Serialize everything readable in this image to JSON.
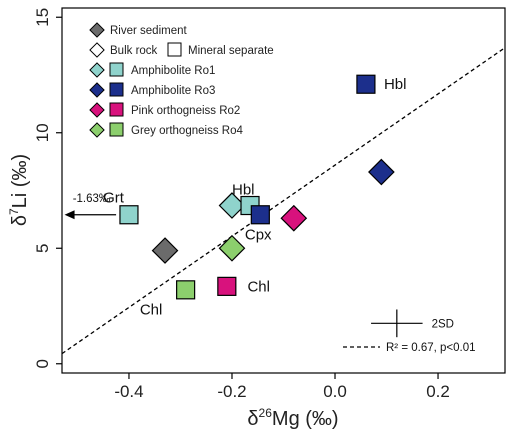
{
  "chart_data": {
    "type": "scatter",
    "xlabel_main": "δ",
    "xlabel_sup": "26",
    "xlabel_rest": "Mg (‰)",
    "ylabel_main": "δ",
    "ylabel_sup": "7",
    "ylabel_rest": "Li (‰)",
    "xlim": [
      -0.53,
      0.33
    ],
    "ylim": [
      -0.4,
      15.4
    ],
    "xticks": [
      "-0.4",
      "-0.2",
      "0.0",
      "0.2"
    ],
    "xtick_values": [
      -0.4,
      -0.2,
      0.0,
      0.2
    ],
    "yticks": [
      "0",
      "5",
      "10",
      "15"
    ],
    "ytick_values": [
      0,
      5,
      10,
      15
    ],
    "colors": {
      "river": "#6b6b6b",
      "ro1": "#8fd3cc",
      "ro3": "#1c2f8c",
      "ro2": "#d8127d",
      "ro4": "#8ccf6d"
    },
    "legend": {
      "river": "River sediment",
      "bulk": "Bulk rock",
      "mineral": "Mineral separate",
      "ro1": "Amphibolite Ro1",
      "ro3": "Amphibolite Ro3",
      "ro2": "Pink orthogneiss Ro2",
      "ro4": "Grey orthogneiss Ro4"
    },
    "points": [
      {
        "group": "river",
        "shape": "diamond",
        "x": -0.33,
        "y": 4.9
      },
      {
        "group": "ro1",
        "shape": "diamond",
        "x": -0.2,
        "y": 6.85
      },
      {
        "group": "ro1",
        "shape": "square",
        "x": -0.165,
        "y": 6.85
      },
      {
        "group": "ro1",
        "shape": "square",
        "x": -0.4,
        "y": 6.45
      },
      {
        "group": "ro3",
        "shape": "square",
        "x": 0.06,
        "y": 12.1
      },
      {
        "group": "ro3",
        "shape": "diamond",
        "x": 0.09,
        "y": 8.3
      },
      {
        "group": "ro3",
        "shape": "square",
        "x": -0.145,
        "y": 6.45
      },
      {
        "group": "ro2",
        "shape": "diamond",
        "x": -0.08,
        "y": 6.3
      },
      {
        "group": "ro2",
        "shape": "square",
        "x": -0.21,
        "y": 3.35
      },
      {
        "group": "ro4",
        "shape": "diamond",
        "x": -0.2,
        "y": 5.0
      },
      {
        "group": "ro4",
        "shape": "square",
        "x": -0.29,
        "y": 3.2
      }
    ],
    "annotations": [
      {
        "text": "Hbl",
        "x": 0.095,
        "y": 12.1
      },
      {
        "text": "Hbl",
        "x": -0.2,
        "y": 7.55
      },
      {
        "text": "Cpx",
        "x": -0.175,
        "y": 5.6
      },
      {
        "text": "Chl",
        "x": -0.17,
        "y": 3.35
      },
      {
        "text": "Chl",
        "x": -0.357,
        "y": 2.35
      },
      {
        "text": "Grt",
        "x": -0.43,
        "y": 7.2
      }
    ],
    "arrow": {
      "from_x": -0.425,
      "to_x": -0.525,
      "y": 6.45,
      "label": "-1.63‰"
    },
    "regression": {
      "slope": 15.4,
      "intercept": 8.6,
      "label": "R² = 0.67, p<0.01"
    },
    "error_bar": {
      "x": 0.12,
      "y": 1.75,
      "xerr": 0.05,
      "yerr": 0.6,
      "label": "2SD"
    }
  }
}
